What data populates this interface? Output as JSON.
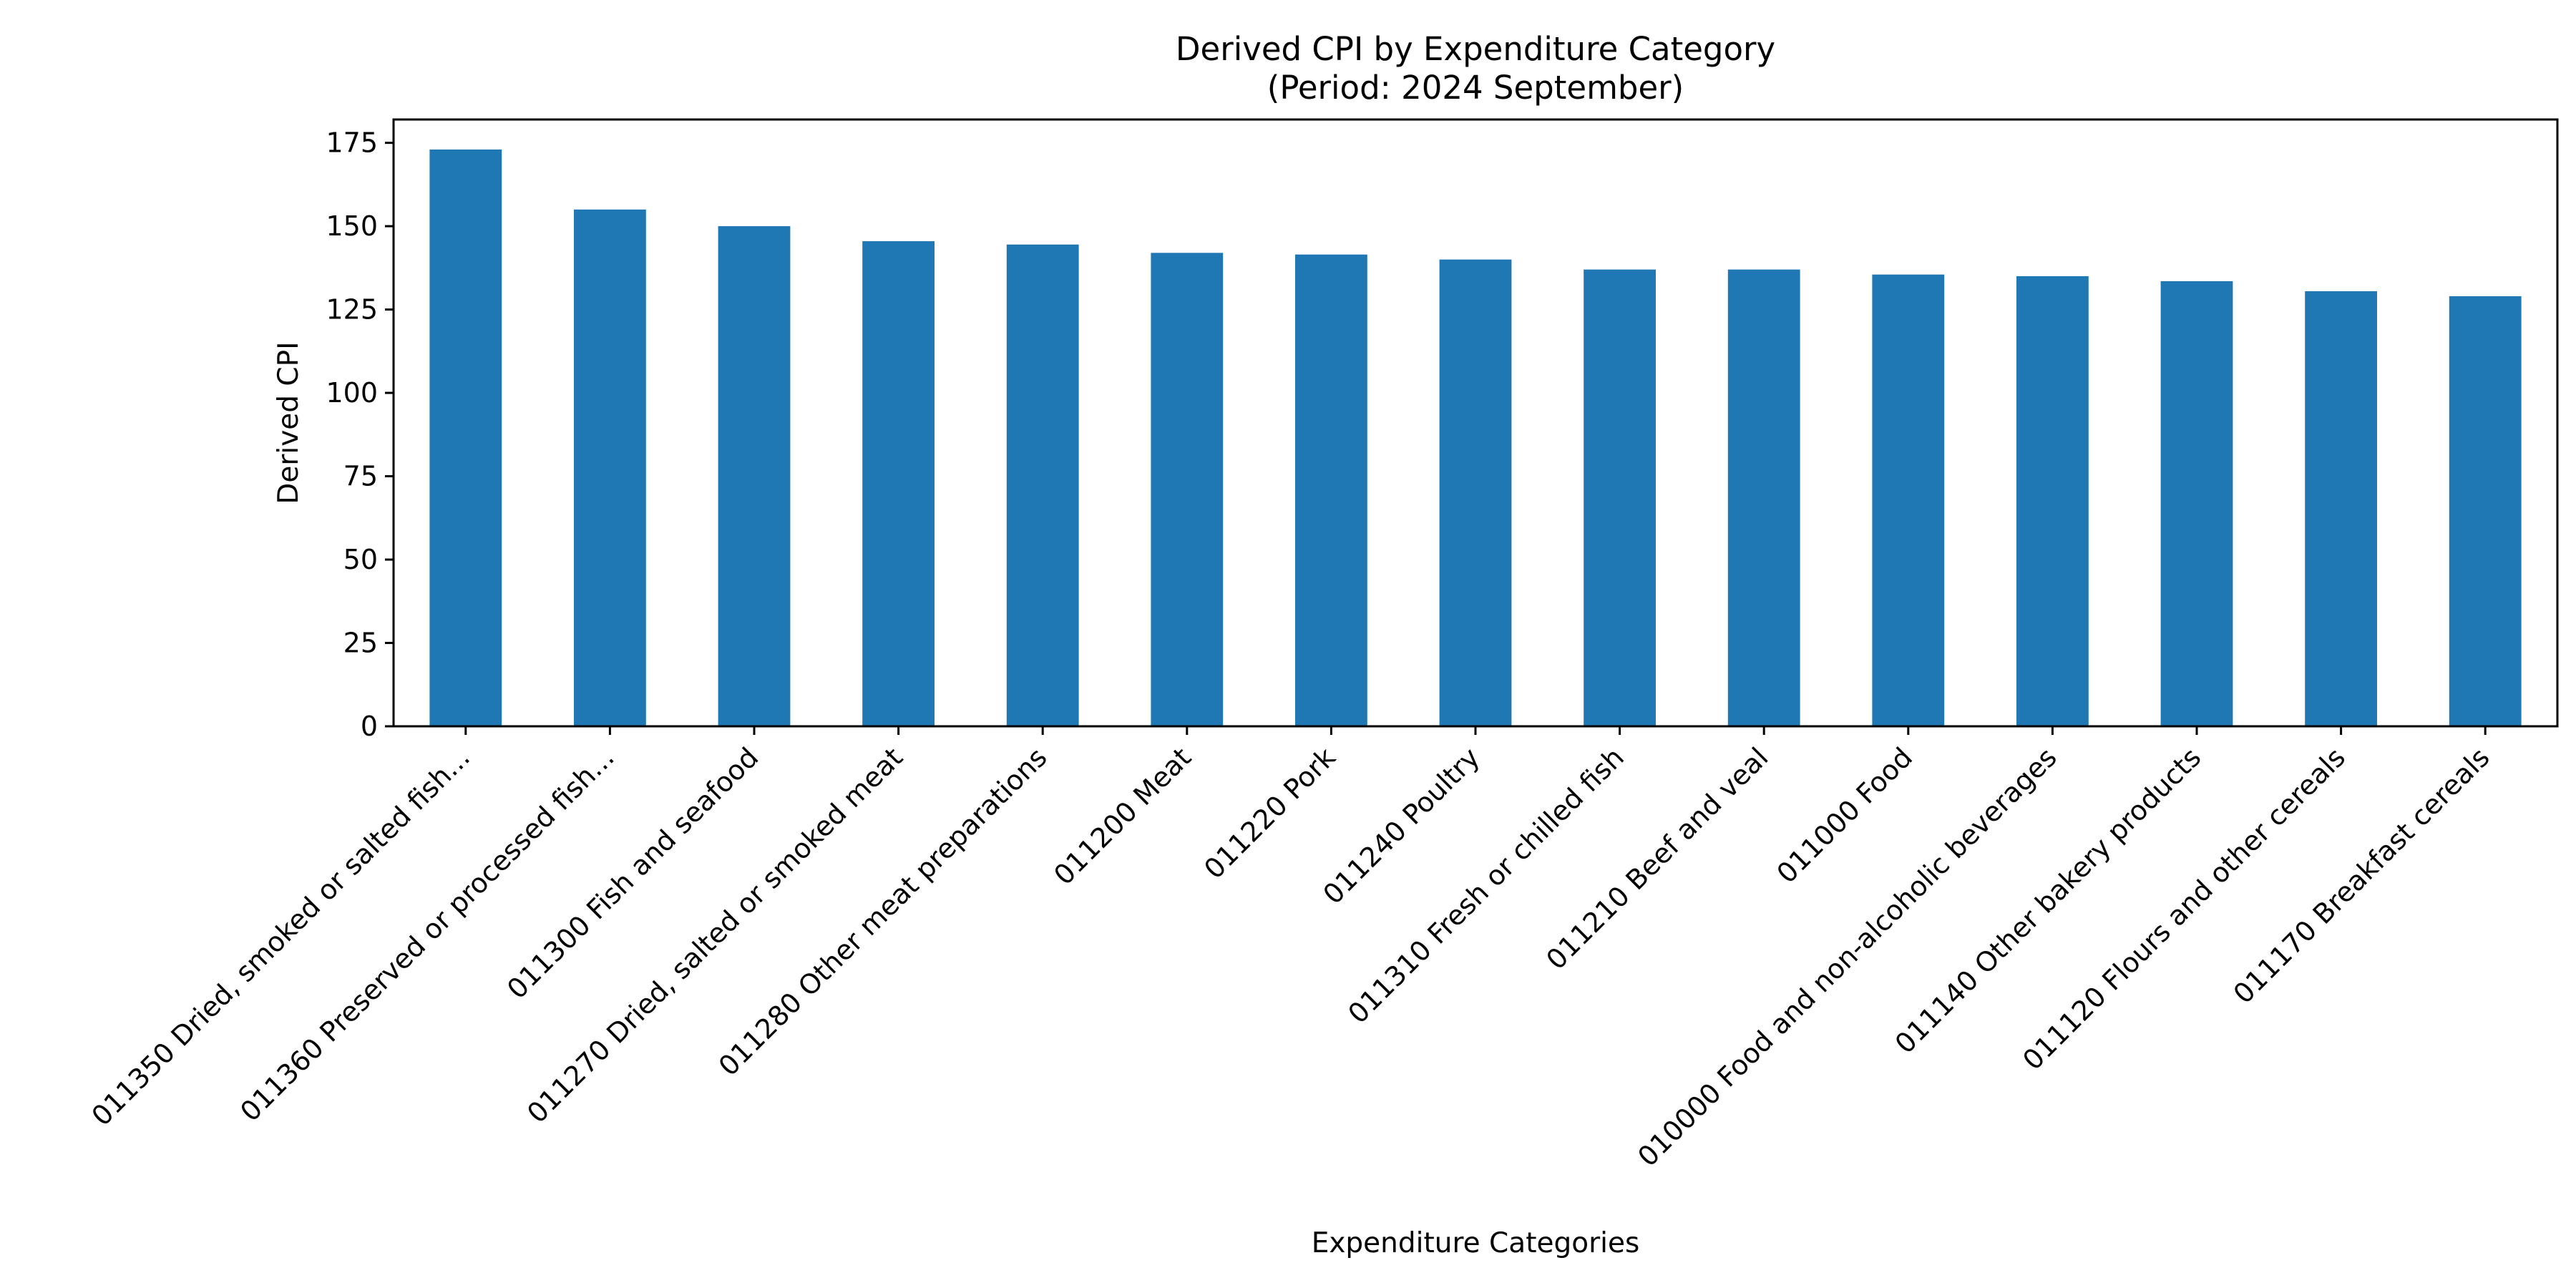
{
  "chart_data": {
    "type": "bar",
    "title": "Derived CPI by Expenditure Category",
    "subtitle": "(Period: 2024 September)",
    "xlabel": "Expenditure Categories",
    "ylabel": "Derived CPI",
    "ylim": [
      0,
      182
    ],
    "yticks": [
      0,
      25,
      50,
      75,
      100,
      125,
      150,
      175
    ],
    "grid": false,
    "legend": "none",
    "bar_color": "#1f77b4",
    "categories": [
      "011350 Dried, smoked or salted fish...",
      "011360 Preserved or processed fish...",
      "011300 Fish and seafood",
      "011270 Dried, salted or smoked meat",
      "011280 Other meat preparations",
      "011200 Meat",
      "011220 Pork",
      "011240 Poultry",
      "011310 Fresh or chilled fish",
      "011210 Beef and veal",
      "011000 Food",
      "010000 Food and non-alcoholic beverages",
      "011140 Other bakery products",
      "011120 Flours and other cereals",
      "011170 Breakfast cereals"
    ],
    "values": [
      173,
      155,
      150,
      145.5,
      144.5,
      142,
      141.5,
      140,
      137,
      137,
      135.5,
      135,
      133.5,
      130.5,
      129
    ]
  }
}
